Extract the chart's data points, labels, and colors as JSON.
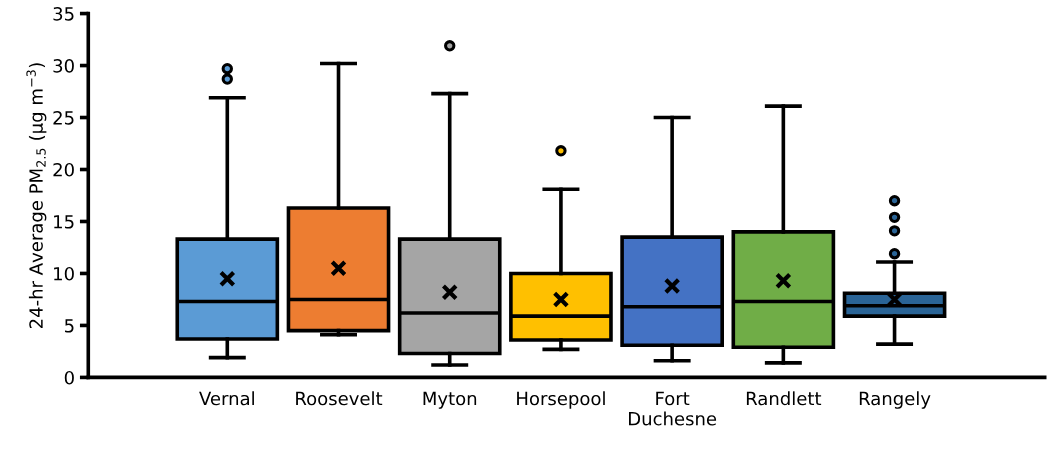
{
  "chart_data": {
    "type": "box",
    "ylabel": "24-hr Average PM$_{2.5}$ (µg m$^{−3}$)",
    "categories": [
      "Vernal",
      "Roosevelt",
      "Myton",
      "Horsepool",
      "Fort\nDuchesne",
      "Randlett",
      "Rangely"
    ],
    "colors": [
      "#5b9bd5",
      "#ed7d31",
      "#a5a5a5",
      "#ffc000",
      "#4472c4",
      "#70ad47",
      "#2a6496"
    ],
    "boxes": [
      {
        "low": 1.9,
        "q1": 3.7,
        "median": 7.3,
        "q3": 13.3,
        "high": 26.9,
        "mean": 9.5,
        "outliers": [
          29.7,
          28.7
        ]
      },
      {
        "low": 4.1,
        "q1": 4.5,
        "median": 7.5,
        "q3": 16.3,
        "high": 30.2,
        "mean": 10.5
      },
      {
        "low": 1.2,
        "q1": 2.3,
        "median": 6.2,
        "q3": 13.3,
        "high": 27.3,
        "mean": 8.2,
        "outliers": [
          31.9
        ]
      },
      {
        "low": 2.7,
        "q1": 3.6,
        "median": 5.9,
        "q3": 10.0,
        "high": 18.1,
        "mean": 7.5,
        "outliers": [
          21.8
        ]
      },
      {
        "low": 1.6,
        "q1": 3.1,
        "median": 6.8,
        "q3": 13.5,
        "high": 25.0,
        "mean": 8.8
      },
      {
        "low": 1.4,
        "q1": 2.9,
        "median": 7.3,
        "q3": 14.0,
        "high": 26.1,
        "mean": 9.3
      },
      {
        "low": 3.2,
        "q1": 5.9,
        "median": 6.9,
        "q3": 8.1,
        "high": 11.1,
        "mean": 7.5,
        "outliers": [
          17.0,
          15.4,
          14.1,
          11.9
        ]
      }
    ],
    "ylim": [
      0,
      35
    ],
    "yticks": [
      0,
      5,
      10,
      15,
      20,
      25,
      30,
      35
    ],
    "grid": false,
    "legend": false
  }
}
